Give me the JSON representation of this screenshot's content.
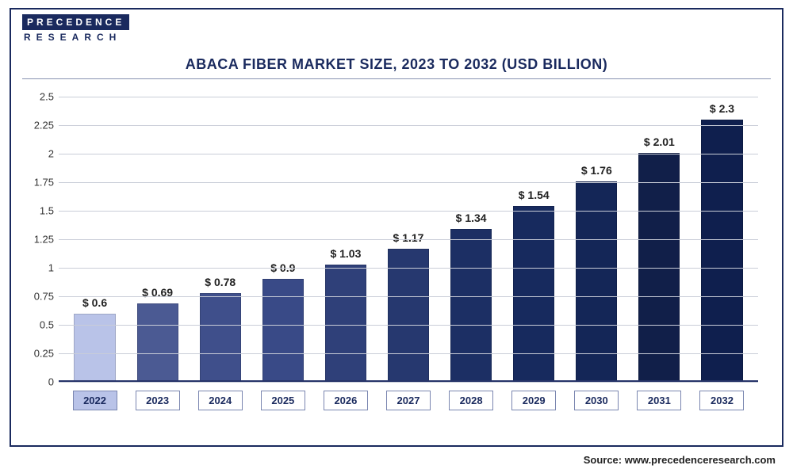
{
  "logo": {
    "line1": "PRECEDENCE",
    "line2": "RESEARCH"
  },
  "chart": {
    "type": "bar",
    "title": "ABACA FIBER MARKET SIZE, 2023 TO 2032 (USD BILLION)",
    "categories": [
      "2022",
      "2023",
      "2024",
      "2025",
      "2026",
      "2027",
      "2028",
      "2029",
      "2030",
      "2031",
      "2032"
    ],
    "values": [
      0.6,
      0.69,
      0.78,
      0.9,
      1.03,
      1.17,
      1.34,
      1.54,
      1.76,
      2.01,
      2.3
    ],
    "value_labels": [
      "$ 0.6",
      "$ 0.69",
      "$ 0.78",
      "$ 0.9",
      "$ 1.03",
      "$ 1.17",
      "$ 1.34",
      "$ 1.54",
      "$ 1.76",
      "$ 2.01",
      "$ 2.3"
    ],
    "bar_colors": [
      "#b9c3e8",
      "#4b5a93",
      "#3f4f8b",
      "#394a87",
      "#2f4079",
      "#26386f",
      "#1c2f64",
      "#172a5e",
      "#142657",
      "#111f49",
      "#0f1f4e"
    ],
    "ylim": [
      0,
      2.5
    ],
    "ytick_step": 0.25,
    "yticks": [
      "0",
      "0.25",
      "0.5",
      "0.75",
      "1",
      "1.25",
      "1.5",
      "1.75",
      "2",
      "2.25",
      "2.5"
    ],
    "background_color": "#ffffff",
    "grid_color": "#c9cdd8",
    "frame_color": "#1a2a5e",
    "bar_width": 0.66,
    "title_fontsize": 18,
    "label_fontsize": 13,
    "value_fontsize": 14,
    "highlight_first_category": true
  },
  "source_label": "Source: www.precedenceresearch.com"
}
